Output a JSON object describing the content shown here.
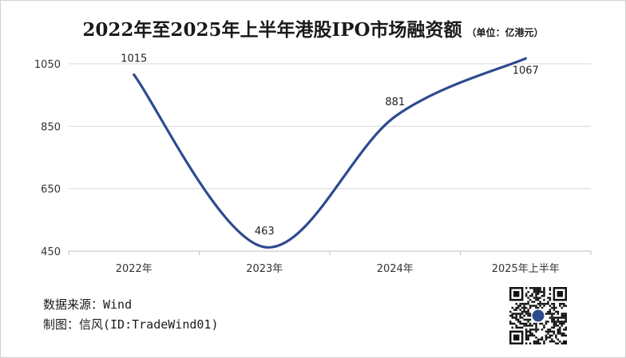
{
  "chart_data": {
    "type": "line",
    "title": "2022年至2025年上半年港股IPO市场融资额",
    "unit": "（单位：亿港元）",
    "categories": [
      "2022年",
      "2023年",
      "2024年",
      "2025年上半年"
    ],
    "series": [
      {
        "values": [
          1015,
          463,
          881,
          1067
        ],
        "color": "#2e4a8f"
      }
    ],
    "data_labels": [
      "1015",
      "463",
      "881",
      "1067"
    ],
    "yticks": [
      450,
      650,
      850,
      1050
    ],
    "ylim": [
      450,
      1050
    ],
    "smooth": true,
    "grid": true,
    "legend": "none"
  },
  "footer": {
    "source": "数据来源：Wind",
    "author": "制图：信风(ID:TradeWind01)"
  },
  "qr_code": {
    "icon": "qr-code-icon"
  },
  "colors": {
    "line": "#2e4a8f",
    "grid": "#d9d9d9",
    "axis": "#bfbfbf"
  }
}
